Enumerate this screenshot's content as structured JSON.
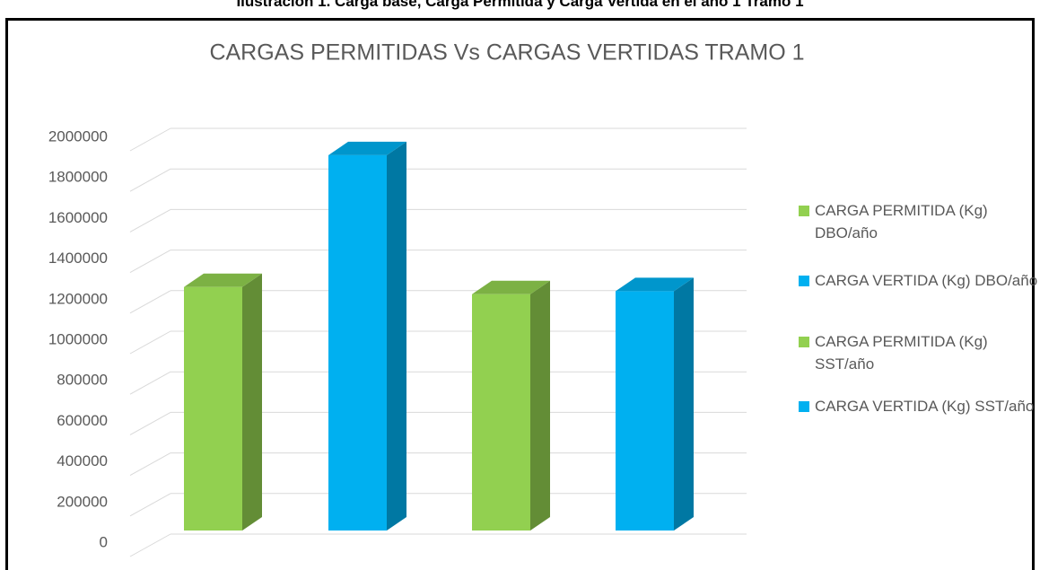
{
  "caption": "Ilustración 1. Carga base, Carga Permitida y Carga Vertida en el año 1 Tramo 1",
  "chart_data": {
    "type": "bar3d",
    "title": "CARGAS PERMITIDAS Vs CARGAS VERTIDAS TRAMO 1",
    "categories": [
      null
    ],
    "series": [
      {
        "name": "CARGA PERMITIDA  (Kg) DBO/año",
        "color": "#92d050",
        "values": [
          1200000
        ]
      },
      {
        "name": "CARGA VERTIDA  (Kg) DBO/año",
        "color": "#00b0f0",
        "values": [
          1850000
        ]
      },
      {
        "name": "CARGA PERMITIDA  (Kg) SST/año",
        "color": "#92d050",
        "values": [
          1165000
        ]
      },
      {
        "name": "CARGA VERTIDA  (Kg) SST/año",
        "color": "#00b0f0",
        "values": [
          1180000
        ]
      }
    ],
    "ylim": [
      0,
      2000000
    ],
    "yticks": [
      0,
      200000,
      400000,
      600000,
      800000,
      1000000,
      1200000,
      1400000,
      1600000,
      1800000,
      2000000
    ],
    "grid": true,
    "legend": "right"
  }
}
